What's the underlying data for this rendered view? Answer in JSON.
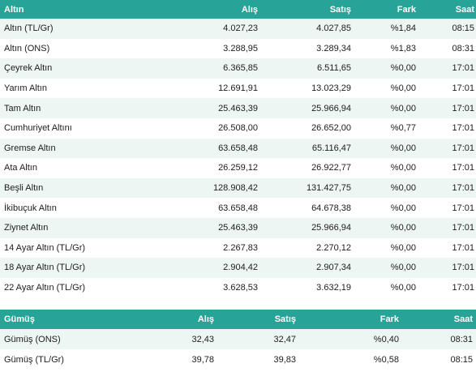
{
  "gold": {
    "headers": {
      "name": "Altın",
      "buy": "Alış",
      "sell": "Satış",
      "diff": "Fark",
      "time": "Saat"
    },
    "rows": [
      {
        "name": "Altın (TL/Gr)",
        "buy": "4.027,23",
        "sell": "4.027,85",
        "diff": "%1,84",
        "time": "08:15"
      },
      {
        "name": "Altın (ONS)",
        "buy": "3.288,95",
        "sell": "3.289,34",
        "diff": "%1,83",
        "time": "08:31"
      },
      {
        "name": "Çeyrek Altın",
        "buy": "6.365,85",
        "sell": "6.511,65",
        "diff": "%0,00",
        "time": "17:01"
      },
      {
        "name": "Yarım Altın",
        "buy": "12.691,91",
        "sell": "13.023,29",
        "diff": "%0,00",
        "time": "17:01"
      },
      {
        "name": "Tam Altın",
        "buy": "25.463,39",
        "sell": "25.966,94",
        "diff": "%0,00",
        "time": "17:01"
      },
      {
        "name": "Cumhuriyet Altını",
        "buy": "26.508,00",
        "sell": "26.652,00",
        "diff": "%0,77",
        "time": "17:01"
      },
      {
        "name": "Gremse Altın",
        "buy": "63.658,48",
        "sell": "65.116,47",
        "diff": "%0,00",
        "time": "17:01"
      },
      {
        "name": "Ata Altın",
        "buy": "26.259,12",
        "sell": "26.922,77",
        "diff": "%0,00",
        "time": "17:01"
      },
      {
        "name": "Beşli Altın",
        "buy": "128.908,42",
        "sell": "131.427,75",
        "diff": "%0,00",
        "time": "17:01"
      },
      {
        "name": "İkibuçuk Altın",
        "buy": "63.658,48",
        "sell": "64.678,38",
        "diff": "%0,00",
        "time": "17:01"
      },
      {
        "name": "Ziynet Altın",
        "buy": "25.463,39",
        "sell": "25.966,94",
        "diff": "%0,00",
        "time": "17:01"
      },
      {
        "name": "14 Ayar Altın (TL/Gr)",
        "buy": "2.267,83",
        "sell": "2.270,12",
        "diff": "%0,00",
        "time": "17:01"
      },
      {
        "name": "18 Ayar Altın (TL/Gr)",
        "buy": "2.904,42",
        "sell": "2.907,34",
        "diff": "%0,00",
        "time": "17:01"
      },
      {
        "name": "22 Ayar Altın (TL/Gr)",
        "buy": "3.628,53",
        "sell": "3.632,19",
        "diff": "%0,00",
        "time": "17:01"
      }
    ]
  },
  "silver": {
    "headers": {
      "name": "Gümüş",
      "buy": "Alış",
      "sell": "Satış",
      "diff": "Fark",
      "time": "Saat"
    },
    "rows": [
      {
        "name": "Gümüş (ONS)",
        "buy": "32,43",
        "sell": "32,47",
        "diff": "%0,40",
        "time": "08:31"
      },
      {
        "name": "Gümüş (TL/Gr)",
        "buy": "39,78",
        "sell": "39,83",
        "diff": "%0,58",
        "time": "08:15"
      }
    ]
  },
  "colors": {
    "header_bg": "#27a397",
    "header_text": "#ffffff",
    "row_alt": "#eef6f4"
  }
}
